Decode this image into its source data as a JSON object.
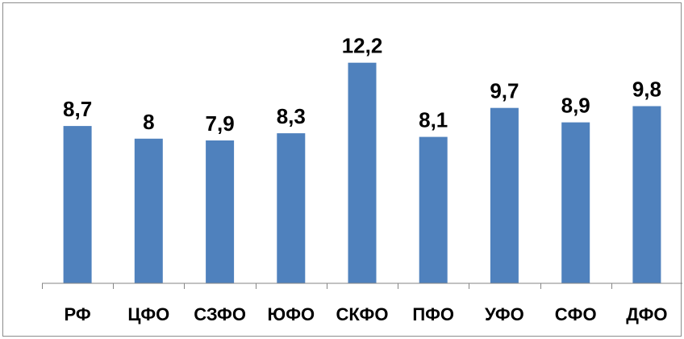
{
  "chart_data": {
    "type": "bar",
    "categories": [
      "РФ",
      "ЦФО",
      "СЗФО",
      "ЮФО",
      "СКФО",
      "ПФО",
      "УФО",
      "СФО",
      "ДФО"
    ],
    "values": [
      8.7,
      8,
      7.9,
      8.3,
      12.2,
      8.1,
      9.7,
      8.9,
      9.8
    ],
    "value_labels": [
      "8,7",
      "8",
      "7,9",
      "8,3",
      "12,2",
      "8,1",
      "9,7",
      "8,9",
      "9,8"
    ],
    "title": "",
    "xlabel": "",
    "ylabel": "",
    "ylim": [
      0,
      14
    ],
    "grid": false,
    "legend": "none",
    "colors": {
      "bar": "#4F81BD",
      "axis": "#868686",
      "frame": "#8c8c8c",
      "text": "#000000"
    }
  }
}
